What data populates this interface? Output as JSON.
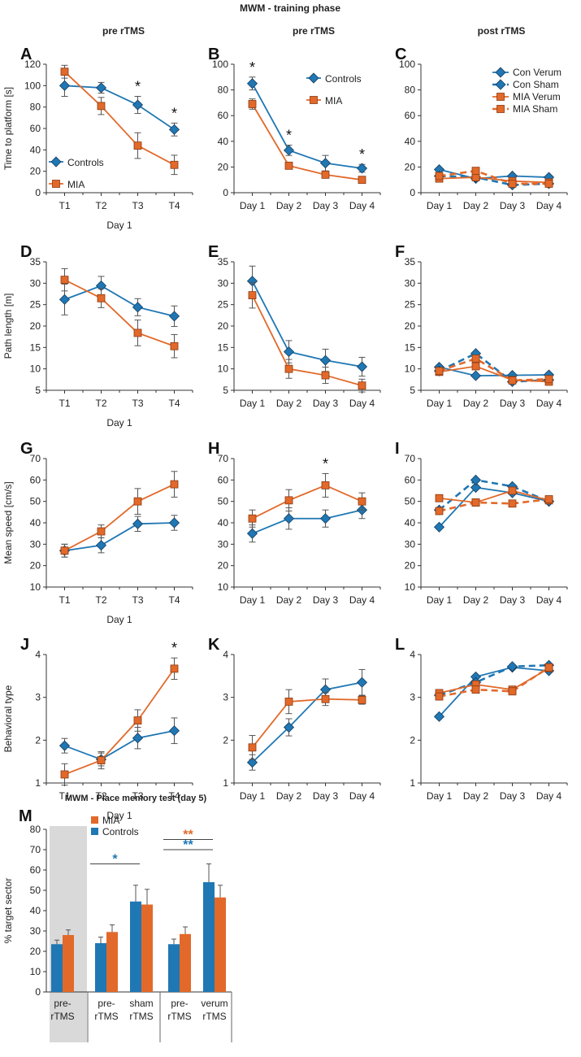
{
  "figure": {
    "title": "MWM - training phase",
    "column_headers": [
      "pre rTMS",
      "pre rTMS",
      "post rTMS"
    ],
    "row_ylabels": [
      "Time to platform [s]",
      "Path length [m]",
      "Mean speed [cm/s]",
      "Behavioral type"
    ],
    "day1_label": "Day 1",
    "colors": {
      "blue": "#1f77b4",
      "orange": "#e2692a",
      "axis": "#333333",
      "shade": "#d9d9d9"
    }
  },
  "chart_data": [
    {
      "id": "A",
      "type": "line",
      "letter": "A",
      "xlabel": "Day 1",
      "ylabel": "Time to platform [s]",
      "categories": [
        "T1",
        "T2",
        "T3",
        "T4"
      ],
      "yticks": [
        0,
        20,
        40,
        60,
        80,
        100,
        120
      ],
      "ylim": [
        0,
        120
      ],
      "series": [
        {
          "name": "Controls",
          "color": "blue",
          "marker": "diamond",
          "values": [
            100,
            98,
            82,
            59
          ],
          "err": [
            10,
            5,
            8,
            6
          ]
        },
        {
          "name": "MIA",
          "color": "orange",
          "marker": "square",
          "values": [
            113,
            81,
            44,
            26
          ],
          "err": [
            6,
            8,
            12,
            9
          ]
        }
      ],
      "legend": {
        "labels": [
          "Controls",
          "MIA"
        ],
        "position": "bottom-left"
      },
      "stars": [
        {
          "i": 2,
          "text": "*"
        },
        {
          "i": 3,
          "text": "*"
        }
      ]
    },
    {
      "id": "B",
      "type": "line",
      "letter": "B",
      "ylabel": "",
      "categories": [
        "Day 1",
        "Day 2",
        "Day 3",
        "Day 4"
      ],
      "yticks": [
        0,
        20,
        40,
        60,
        80,
        100
      ],
      "ylim": [
        0,
        100
      ],
      "series": [
        {
          "name": "Controls",
          "color": "blue",
          "marker": "diamond",
          "values": [
            85,
            33,
            23,
            19
          ],
          "err": [
            5,
            4,
            6,
            3
          ]
        },
        {
          "name": "MIA",
          "color": "orange",
          "marker": "square",
          "values": [
            69,
            21,
            14,
            10
          ],
          "err": [
            4,
            2,
            2,
            2
          ]
        }
      ],
      "legend": {
        "labels": [
          "Controls",
          "MIA"
        ],
        "position": "top-right"
      },
      "stars": [
        {
          "i": 0,
          "text": "*"
        },
        {
          "i": 1,
          "text": "*"
        },
        {
          "i": 3,
          "text": "*"
        }
      ]
    },
    {
      "id": "C",
      "type": "line",
      "letter": "C",
      "ylabel": "",
      "categories": [
        "Day 1",
        "Day 2",
        "Day 3",
        "Day 4"
      ],
      "yticks": [
        0,
        20,
        40,
        60,
        80,
        100
      ],
      "ylim": [
        0,
        100
      ],
      "series": [
        {
          "name": "Con Verum",
          "color": "blue",
          "marker": "diamond",
          "dashed": false,
          "values": [
            18,
            11,
            13,
            12
          ]
        },
        {
          "name": "Con Sham",
          "color": "blue",
          "marker": "diamond",
          "dashed": true,
          "values": [
            13,
            12,
            6,
            7
          ]
        },
        {
          "name": "MIA Verum",
          "color": "orange",
          "marker": "square",
          "dashed": false,
          "values": [
            11,
            12,
            9,
            8
          ]
        },
        {
          "name": "MIA Sham",
          "color": "orange",
          "marker": "square",
          "dashed": true,
          "values": [
            13,
            17,
            7,
            7
          ]
        }
      ],
      "legend": {
        "labels": [
          "Con Verum",
          "Con Sham",
          "MIA Verum",
          "MIA Sham"
        ],
        "position": "top-right"
      },
      "stars": []
    },
    {
      "id": "D",
      "type": "line",
      "letter": "D",
      "xlabel": "Day 1",
      "ylabel": "Path length [m]",
      "categories": [
        "T1",
        "T2",
        "T3",
        "T4"
      ],
      "yticks": [
        5,
        10,
        15,
        20,
        25,
        30,
        35
      ],
      "ylim": [
        5,
        35
      ],
      "series": [
        {
          "name": "Controls",
          "color": "blue",
          "marker": "diamond",
          "values": [
            26.2,
            29.4,
            24.4,
            22.3
          ],
          "err": [
            3.6,
            2.2,
            2,
            2.4
          ]
        },
        {
          "name": "MIA",
          "color": "orange",
          "marker": "square",
          "values": [
            30.8,
            26.5,
            18.4,
            15.3
          ],
          "err": [
            2.6,
            2.2,
            3,
            2.7
          ]
        }
      ],
      "stars": []
    },
    {
      "id": "E",
      "type": "line",
      "letter": "E",
      "ylabel": "",
      "categories": [
        "Day 1",
        "Day 2",
        "Day 3",
        "Day 4"
      ],
      "yticks": [
        5,
        10,
        15,
        20,
        25,
        30,
        35
      ],
      "ylim": [
        5,
        35
      ],
      "series": [
        {
          "name": "Controls",
          "color": "blue",
          "marker": "diamond",
          "values": [
            30.5,
            14,
            12,
            10.5
          ],
          "err": [
            3.5,
            2.6,
            2.6,
            2.2
          ]
        },
        {
          "name": "MIA",
          "color": "orange",
          "marker": "square",
          "values": [
            27.2,
            10,
            8.5,
            6.1
          ],
          "err": [
            3,
            2.2,
            1.9,
            1.5
          ]
        }
      ],
      "stars": []
    },
    {
      "id": "F",
      "type": "line",
      "letter": "F",
      "ylabel": "",
      "categories": [
        "Day 1",
        "Day 2",
        "Day 3",
        "Day 4"
      ],
      "yticks": [
        5,
        10,
        15,
        20,
        25,
        30,
        35
      ],
      "ylim": [
        5,
        35
      ],
      "series": [
        {
          "name": "Con Verum",
          "color": "blue",
          "marker": "diamond",
          "dashed": false,
          "values": [
            10.4,
            8.4,
            8.5,
            8.6
          ]
        },
        {
          "name": "Con Sham",
          "color": "blue",
          "marker": "diamond",
          "dashed": true,
          "values": [
            9.5,
            13.6,
            7,
            7.4
          ]
        },
        {
          "name": "MIA Verum",
          "color": "orange",
          "marker": "square",
          "dashed": false,
          "values": [
            9.3,
            10.6,
            7.4,
            7
          ]
        },
        {
          "name": "MIA Sham",
          "color": "orange",
          "marker": "square",
          "dashed": true,
          "values": [
            9.5,
            12.4,
            7.3,
            7.6
          ]
        }
      ],
      "stars": []
    },
    {
      "id": "G",
      "type": "line",
      "letter": "G",
      "xlabel": "Day 1",
      "ylabel": "Mean speed [cm/s]",
      "categories": [
        "T1",
        "T2",
        "T3",
        "T4"
      ],
      "yticks": [
        10,
        20,
        30,
        40,
        50,
        60,
        70
      ],
      "ylim": [
        10,
        70
      ],
      "series": [
        {
          "name": "Controls",
          "color": "blue",
          "marker": "diamond",
          "values": [
            27,
            29.5,
            39.5,
            40
          ],
          "err": [
            3,
            3.5,
            3.5,
            3.5
          ]
        },
        {
          "name": "MIA",
          "color": "orange",
          "marker": "square",
          "values": [
            27,
            36,
            50,
            58
          ],
          "err": [
            3,
            3,
            6,
            6
          ]
        }
      ],
      "stars": []
    },
    {
      "id": "H",
      "type": "line",
      "letter": "H",
      "ylabel": "",
      "categories": [
        "Day 1",
        "Day 2",
        "Day 3",
        "Day 4"
      ],
      "yticks": [
        10,
        20,
        30,
        40,
        50,
        60,
        70
      ],
      "ylim": [
        10,
        70
      ],
      "series": [
        {
          "name": "Controls",
          "color": "blue",
          "marker": "diamond",
          "values": [
            35,
            42,
            42,
            46
          ],
          "err": [
            4,
            5,
            4,
            4
          ]
        },
        {
          "name": "MIA",
          "color": "orange",
          "marker": "square",
          "values": [
            42,
            50.5,
            57.5,
            50
          ],
          "err": [
            4,
            5,
            5.5,
            4
          ]
        }
      ],
      "stars": [
        {
          "i": 2,
          "text": "*"
        }
      ]
    },
    {
      "id": "I",
      "type": "line",
      "letter": "I",
      "ylabel": "",
      "categories": [
        "Day 1",
        "Day 2",
        "Day 3",
        "Day 4"
      ],
      "yticks": [
        10,
        20,
        30,
        40,
        50,
        60,
        70
      ],
      "ylim": [
        10,
        70
      ],
      "series": [
        {
          "name": "Con Verum",
          "color": "blue",
          "marker": "diamond",
          "dashed": false,
          "values": [
            38,
            56.5,
            54,
            50
          ]
        },
        {
          "name": "Con Sham",
          "color": "blue",
          "marker": "diamond",
          "dashed": true,
          "values": [
            46,
            60,
            57,
            50
          ]
        },
        {
          "name": "MIA Verum",
          "color": "orange",
          "marker": "square",
          "dashed": false,
          "values": [
            51.5,
            49.5,
            55,
            50.5
          ]
        },
        {
          "name": "MIA Sham",
          "color": "orange",
          "marker": "square",
          "dashed": true,
          "values": [
            45.5,
            49.5,
            49,
            51
          ]
        }
      ],
      "stars": []
    },
    {
      "id": "J",
      "type": "line",
      "letter": "J",
      "xlabel": "Day 1",
      "ylabel": "Behavioral type",
      "categories": [
        "T1",
        "T2",
        "T3",
        "T4"
      ],
      "yticks": [
        1,
        2,
        3,
        4
      ],
      "ylim": [
        1,
        4
      ],
      "series": [
        {
          "name": "Controls",
          "color": "blue",
          "marker": "diamond",
          "values": [
            1.87,
            1.55,
            2.05,
            2.22
          ],
          "err": [
            0.17,
            0.15,
            0.25,
            0.3
          ]
        },
        {
          "name": "MIA",
          "color": "orange",
          "marker": "square",
          "values": [
            1.2,
            1.53,
            2.46,
            3.67
          ],
          "err": [
            0.25,
            0.2,
            0.25,
            0.25
          ]
        }
      ],
      "stars": [
        {
          "i": 3,
          "text": "*"
        }
      ]
    },
    {
      "id": "K",
      "type": "line",
      "letter": "K",
      "ylabel": "",
      "categories": [
        "Day 1",
        "Day 2",
        "Day 3",
        "Day 4"
      ],
      "yticks": [
        1,
        2,
        3,
        4
      ],
      "ylim": [
        1,
        4
      ],
      "series": [
        {
          "name": "Controls",
          "color": "blue",
          "marker": "diamond",
          "values": [
            1.48,
            2.3,
            3.18,
            3.35
          ],
          "err": [
            0.18,
            0.2,
            0.25,
            0.3
          ]
        },
        {
          "name": "MIA",
          "color": "orange",
          "marker": "square",
          "values": [
            1.83,
            2.9,
            2.96,
            2.94
          ],
          "err": [
            0.28,
            0.28,
            0.15,
            0.1
          ]
        }
      ],
      "stars": []
    },
    {
      "id": "L",
      "type": "line",
      "letter": "L",
      "ylabel": "",
      "categories": [
        "Day 1",
        "Day 2",
        "Day 3",
        "Day 4"
      ],
      "yticks": [
        1,
        2,
        3,
        4
      ],
      "ylim": [
        1,
        4
      ],
      "series": [
        {
          "name": "Con Verum",
          "color": "blue",
          "marker": "diamond",
          "dashed": false,
          "values": [
            2.55,
            3.48,
            3.7,
            3.62
          ]
        },
        {
          "name": "Con Sham",
          "color": "blue",
          "marker": "diamond",
          "dashed": true,
          "values": [
            3.05,
            3.35,
            3.72,
            3.75
          ]
        },
        {
          "name": "MIA Verum",
          "color": "orange",
          "marker": "square",
          "dashed": false,
          "values": [
            3.1,
            3.3,
            3.18,
            3.68
          ]
        },
        {
          "name": "MIA Sham",
          "color": "orange",
          "marker": "square",
          "dashed": true,
          "values": [
            3.02,
            3.18,
            3.14,
            3.7
          ]
        }
      ],
      "stars": []
    },
    {
      "id": "M",
      "type": "bar",
      "letter": "M",
      "title": "MWM - Place memory test (day 5)",
      "ylabel": "% target sector",
      "yticks": [
        0,
        10,
        20,
        30,
        40,
        50,
        60,
        70,
        80
      ],
      "ylim": [
        0,
        80
      ],
      "groups": [
        {
          "top": "pre-",
          "bottom": "rTMS",
          "Controls": 23.5,
          "MIA": 28,
          "err_c": 2,
          "err_m": 2.5,
          "shaded": true
        },
        {
          "top": "pre-",
          "bottom": "rTMS",
          "Controls": 24,
          "MIA": 29.5,
          "err_c": 3,
          "err_m": 3.5
        },
        {
          "top": "sham",
          "bottom": "rTMS",
          "Controls": 44.5,
          "MIA": 43,
          "err_c": 8,
          "err_m": 7.5
        },
        {
          "top": "pre-",
          "bottom": "rTMS",
          "Controls": 23.5,
          "MIA": 28.5,
          "err_c": 2.5,
          "err_m": 3.5
        },
        {
          "top": "verum",
          "bottom": "rTMS",
          "Controls": 54,
          "MIA": 46.5,
          "err_c": 9,
          "err_m": 6
        }
      ],
      "legend": {
        "labels": [
          "MIA",
          "Controls"
        ],
        "position": "top-left"
      },
      "sig": [
        {
          "from": 1,
          "to": 2,
          "color": "blue",
          "text": "*",
          "y": 63
        },
        {
          "from": 3,
          "to": 4,
          "color": "blue",
          "text": "**",
          "y": 70
        },
        {
          "from": 3,
          "to": 4,
          "color": "orange",
          "text": "**",
          "y": 75
        }
      ]
    }
  ]
}
